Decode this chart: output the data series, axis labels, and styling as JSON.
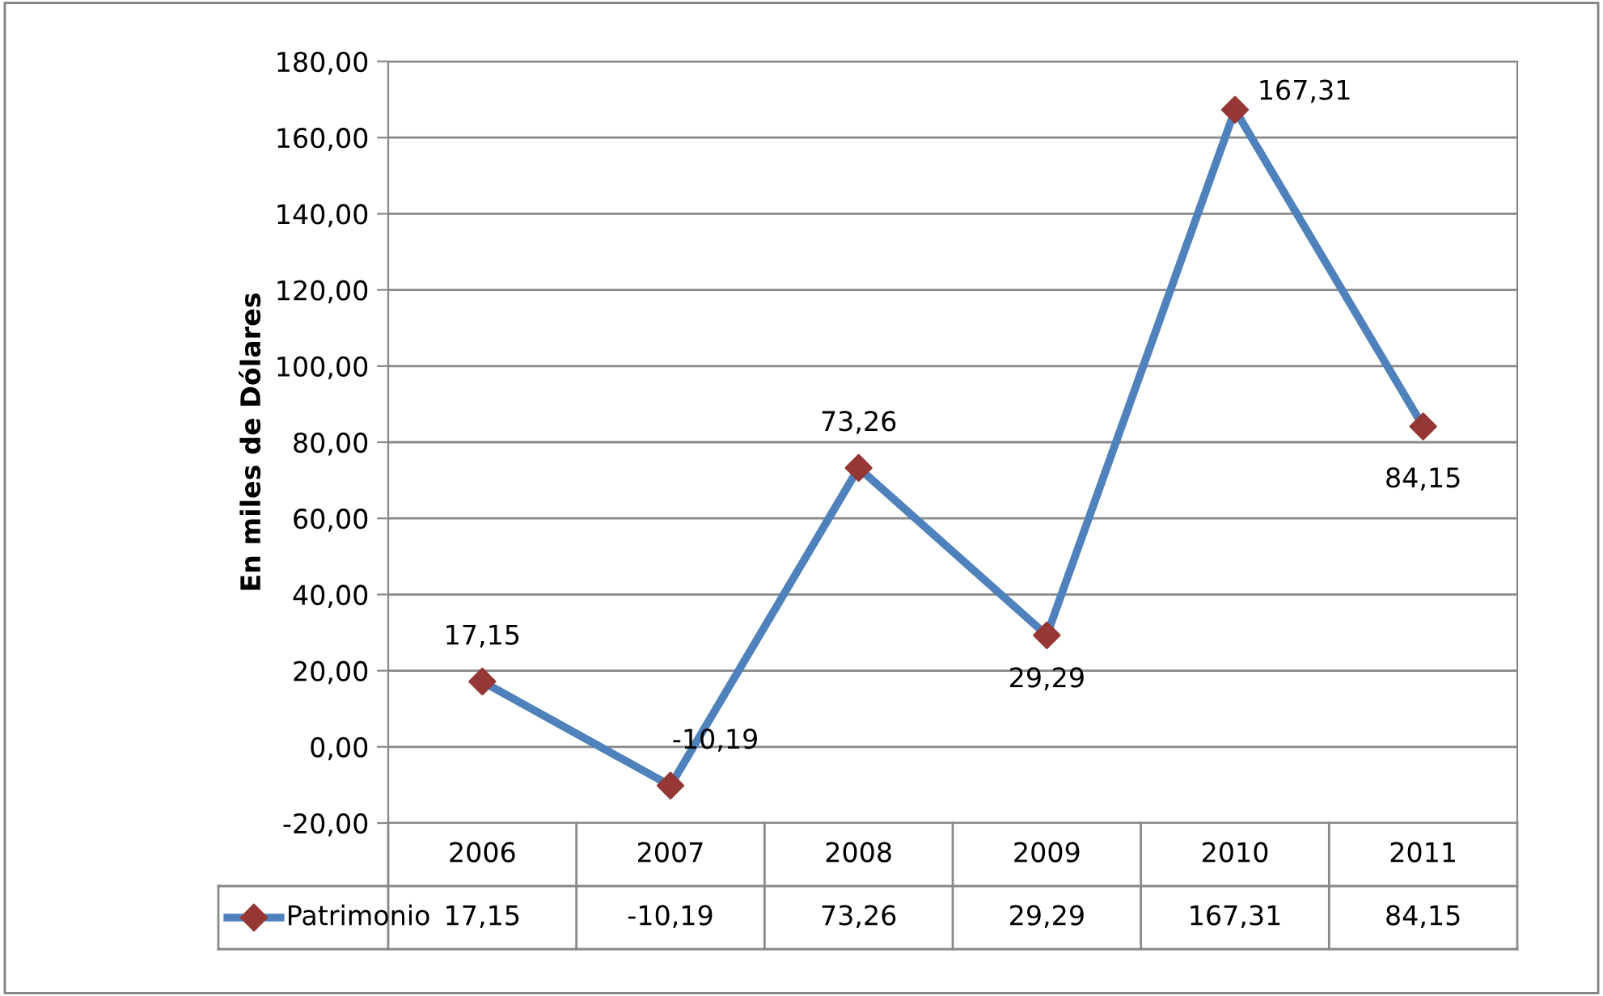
{
  "chart_data": {
    "type": "line",
    "ylabel": "En miles de Dólares",
    "categories": [
      "2006",
      "2007",
      "2008",
      "2009",
      "2010",
      "2011"
    ],
    "series": [
      {
        "name": "Patrimonio",
        "color": "#4f81bd",
        "values": [
          17.15,
          -10.19,
          73.26,
          29.29,
          167.31,
          84.15
        ],
        "colors": [
          "#953735",
          "#953735",
          "#953735",
          "#953735",
          "#953735",
          "#953735"
        ],
        "value_labels": [
          "17,15",
          "-10,19",
          "73,26",
          "29,29",
          "167,31",
          "84,15"
        ]
      }
    ],
    "ylim": [
      -20,
      180
    ],
    "yticks": [
      {
        "value": -20,
        "label": "-20,00"
      },
      {
        "value": 0,
        "label": "0,00"
      },
      {
        "value": 20,
        "label": "20,00"
      },
      {
        "value": 40,
        "label": "40,00"
      },
      {
        "value": 60,
        "label": "60,00"
      },
      {
        "value": 80,
        "label": "80,00"
      },
      {
        "value": 100,
        "label": "100,00"
      },
      {
        "value": 120,
        "label": "120,00"
      },
      {
        "value": 140,
        "label": "140,00"
      },
      {
        "value": 160,
        "label": "160,00"
      },
      {
        "value": 180,
        "label": "180,00"
      }
    ],
    "grid": "y",
    "marker": "diamond",
    "line_style": "solid",
    "legend": "bottom"
  }
}
